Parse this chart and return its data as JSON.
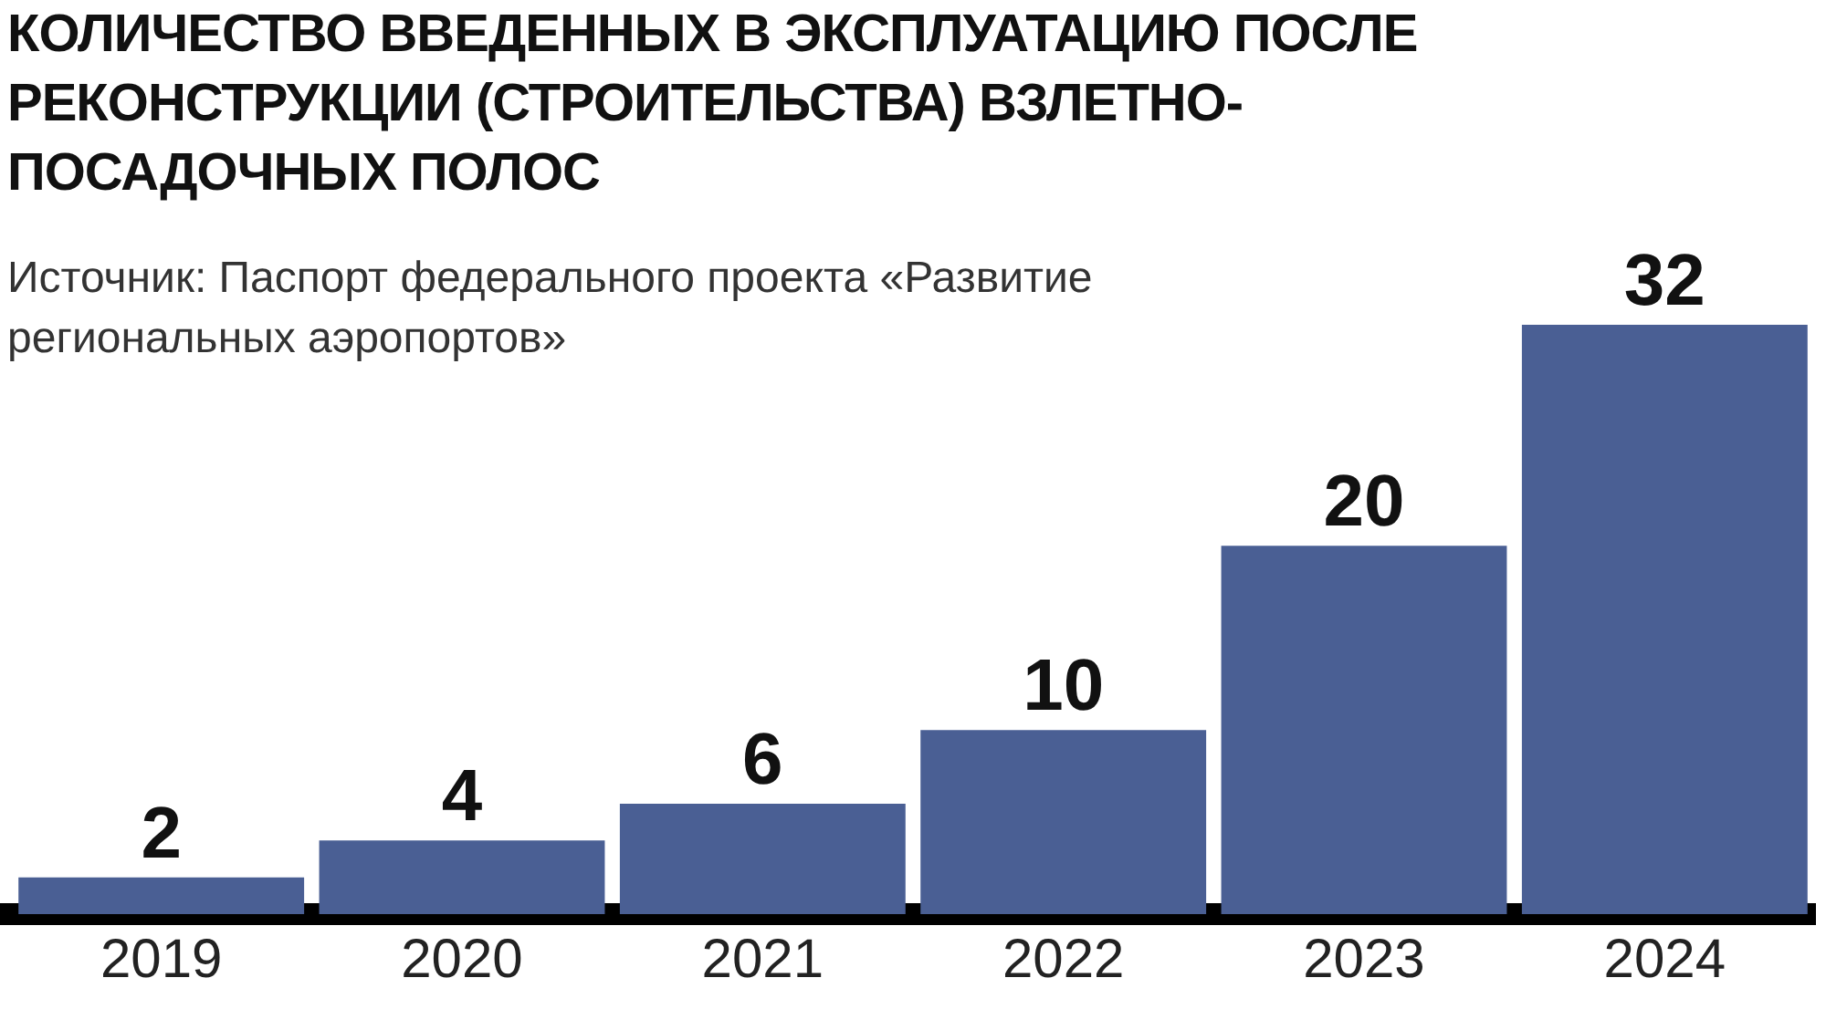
{
  "chart_data": {
    "type": "bar",
    "title": "КОЛИЧЕСТВО ВВЕДЕННЫХ В ЭКСПЛУАТАЦИЮ ПОСЛЕ РЕКОНСТРУКЦИИ (СТРОИТЕЛЬСТВА) ВЗЛЕТНО-ПОСАДОЧНЫХ ПОЛОС",
    "subtitle": "Источник: Паспорт федерального проекта «Развитие региональных аэропортов»",
    "categories": [
      "2019",
      "2020",
      "2021",
      "2022",
      "2023",
      "2024"
    ],
    "values": [
      2,
      4,
      6,
      10,
      20,
      32
    ],
    "color": "#4a5f94",
    "data_labels": true,
    "grid": false,
    "legend": false
  }
}
